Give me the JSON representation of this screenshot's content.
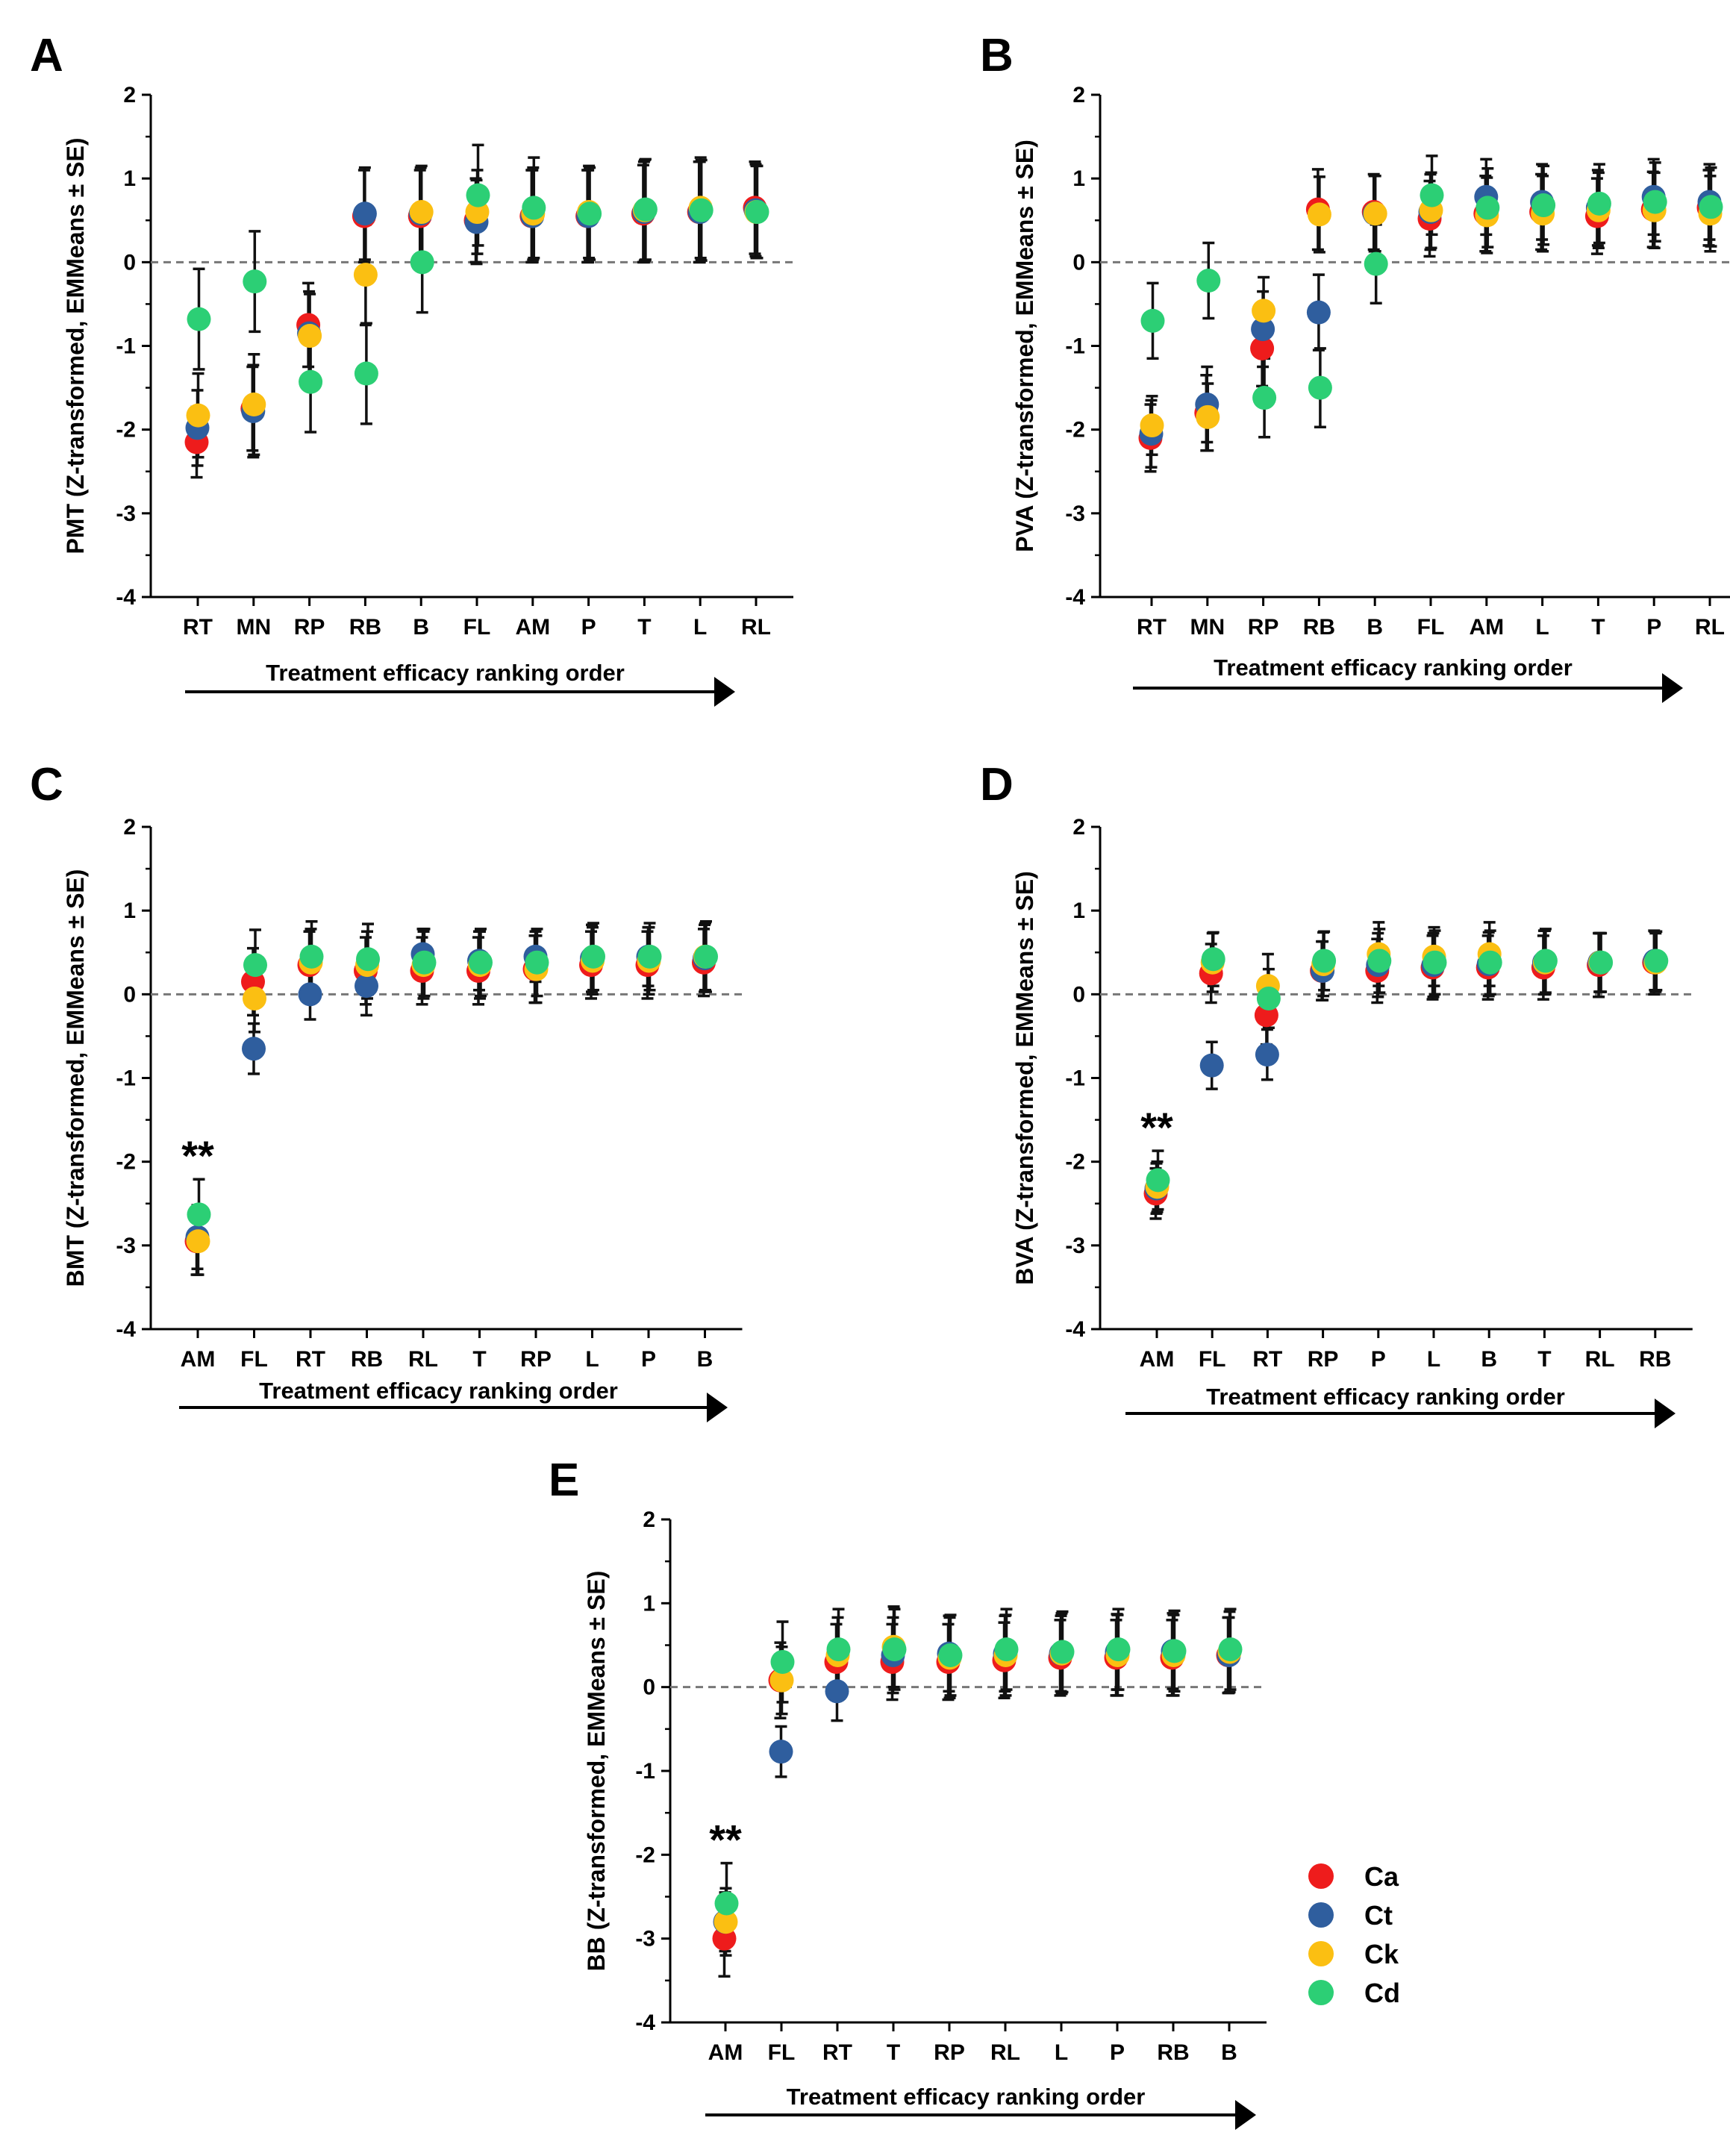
{
  "colors": {
    "Ca": "#ee1c1c",
    "Ct": "#2f5e9e",
    "Ck": "#fbbf12",
    "Cd": "#2ccf75"
  },
  "legend": [
    {
      "key": "Ca",
      "label": "Ca"
    },
    {
      "key": "Ct",
      "label": "Ct"
    },
    {
      "key": "Ck",
      "label": "Ck"
    },
    {
      "key": "Cd",
      "label": "Cd"
    }
  ],
  "chart_data": [
    {
      "type": "scatter",
      "panel": "A",
      "ylabel": "PMT (Z-transformed, EMMeans ± SE)",
      "xlabel": "Treatment efficacy ranking order",
      "ylim": [
        -4,
        2
      ],
      "yticks": [
        -4,
        -3,
        -2,
        -1,
        0,
        1,
        2
      ],
      "categories": [
        "RT",
        "MN",
        "RP",
        "RB",
        "B",
        "FL",
        "AM",
        "P",
        "T",
        "L",
        "RL"
      ],
      "reference_line": 0,
      "significance": [],
      "series": [
        {
          "name": "Ca",
          "values": [
            -2.15,
            -1.75,
            -0.75,
            0.55,
            0.55,
            0.5,
            0.55,
            0.55,
            0.58,
            0.6,
            0.65
          ],
          "se": [
            0.42,
            0.5,
            0.5,
            0.55,
            0.55,
            0.5,
            0.55,
            0.55,
            0.58,
            0.6,
            0.55
          ]
        },
        {
          "name": "Ct",
          "values": [
            -1.98,
            -1.78,
            -0.85,
            0.58,
            0.58,
            0.48,
            0.55,
            0.55,
            0.6,
            0.6,
            0.62
          ],
          "se": [
            0.45,
            0.55,
            0.5,
            0.55,
            0.55,
            0.5,
            0.55,
            0.55,
            0.6,
            0.6,
            0.55
          ]
        },
        {
          "name": "Ck",
          "values": [
            -1.83,
            -1.7,
            -0.88,
            -0.15,
            0.6,
            0.6,
            0.58,
            0.6,
            0.62,
            0.65,
            0.6
          ],
          "se": [
            0.5,
            0.6,
            0.5,
            0.6,
            0.55,
            0.5,
            0.55,
            0.55,
            0.6,
            0.6,
            0.55
          ]
        },
        {
          "name": "Cd",
          "values": [
            -0.68,
            -0.23,
            -1.43,
            -1.33,
            0.0,
            0.8,
            0.65,
            0.58,
            0.63,
            0.62,
            0.6
          ],
          "se": [
            0.6,
            0.6,
            0.6,
            0.6,
            0.6,
            0.6,
            0.6,
            0.55,
            0.6,
            0.6,
            0.55
          ]
        }
      ]
    },
    {
      "type": "scatter",
      "panel": "B",
      "ylabel": "PVA (Z-transformed, EMMeans ± SE)",
      "xlabel": "Treatment efficacy ranking order",
      "ylim": [
        -4,
        2
      ],
      "yticks": [
        -4,
        -3,
        -2,
        -1,
        0,
        1,
        2
      ],
      "categories": [
        "RT",
        "MN",
        "RP",
        "RB",
        "B",
        "FL",
        "AM",
        "L",
        "T",
        "P",
        "RL"
      ],
      "reference_line": 0,
      "significance": [],
      "series": [
        {
          "name": "Ca",
          "values": [
            -2.1,
            -1.8,
            -1.03,
            0.63,
            0.6,
            0.52,
            0.58,
            0.6,
            0.55,
            0.63,
            0.65
          ],
          "se": [
            0.4,
            0.45,
            0.45,
            0.48,
            0.45,
            0.45,
            0.45,
            0.45,
            0.45,
            0.45,
            0.45
          ]
        },
        {
          "name": "Ct",
          "values": [
            -2.05,
            -1.7,
            -0.8,
            -0.6,
            0.58,
            0.6,
            0.78,
            0.72,
            0.65,
            0.78,
            0.72
          ],
          "se": [
            0.4,
            0.45,
            0.45,
            0.45,
            0.45,
            0.45,
            0.45,
            0.45,
            0.45,
            0.45,
            0.45
          ]
        },
        {
          "name": "Ck",
          "values": [
            -1.95,
            -1.85,
            -0.58,
            0.57,
            0.58,
            0.62,
            0.56,
            0.58,
            0.62,
            0.62,
            0.58
          ],
          "se": [
            0.35,
            0.4,
            0.4,
            0.45,
            0.45,
            0.45,
            0.45,
            0.45,
            0.45,
            0.45,
            0.45
          ]
        },
        {
          "name": "Cd",
          "values": [
            -0.7,
            -0.22,
            -1.62,
            -1.5,
            -0.02,
            0.8,
            0.65,
            0.68,
            0.7,
            0.72,
            0.66
          ],
          "se": [
            0.45,
            0.45,
            0.47,
            0.47,
            0.47,
            0.47,
            0.47,
            0.47,
            0.47,
            0.47,
            0.47
          ]
        }
      ]
    },
    {
      "type": "scatter",
      "panel": "C",
      "ylabel": "BMT (Z-transformed, EMMeans ± SE)",
      "xlabel": "Treatment efficacy ranking order",
      "ylim": [
        -4,
        2
      ],
      "yticks": [
        -4,
        -3,
        -2,
        -1,
        0,
        1,
        2
      ],
      "categories": [
        "AM",
        "FL",
        "RT",
        "RB",
        "RL",
        "T",
        "RP",
        "L",
        "P",
        "B"
      ],
      "reference_line": 0,
      "significance": [
        {
          "category": "AM",
          "label": "**"
        }
      ],
      "series": [
        {
          "name": "Ca",
          "values": [
            -2.95,
            0.15,
            0.35,
            0.28,
            0.28,
            0.28,
            0.3,
            0.35,
            0.35,
            0.38
          ],
          "se": [
            0.4,
            0.4,
            0.4,
            0.4,
            0.4,
            0.4,
            0.4,
            0.4,
            0.4,
            0.4
          ]
        },
        {
          "name": "Ct",
          "values": [
            -2.9,
            -0.65,
            0.0,
            0.1,
            0.48,
            0.4,
            0.45,
            0.43,
            0.45,
            0.43
          ],
          "se": [
            0.38,
            0.3,
            0.3,
            0.35,
            0.3,
            0.35,
            0.3,
            0.4,
            0.35,
            0.4
          ]
        },
        {
          "name": "Ck",
          "values": [
            -2.95,
            -0.05,
            0.38,
            0.35,
            0.35,
            0.35,
            0.3,
            0.4,
            0.4,
            0.45
          ],
          "se": [
            0.4,
            0.4,
            0.4,
            0.4,
            0.4,
            0.4,
            0.4,
            0.4,
            0.4,
            0.4
          ]
        },
        {
          "name": "Cd",
          "values": [
            -2.63,
            0.35,
            0.45,
            0.42,
            0.38,
            0.38,
            0.38,
            0.45,
            0.45,
            0.45
          ],
          "se": [
            0.42,
            0.42,
            0.42,
            0.42,
            0.4,
            0.4,
            0.4,
            0.4,
            0.4,
            0.42
          ]
        }
      ]
    },
    {
      "type": "scatter",
      "panel": "D",
      "ylabel": "BVA (Z-transformed, EMMeans ± SE)",
      "xlabel": "Treatment efficacy ranking order",
      "ylim": [
        -4,
        2
      ],
      "yticks": [
        -4,
        -3,
        -2,
        -1,
        0,
        1,
        2
      ],
      "categories": [
        "AM",
        "FL",
        "RT",
        "RP",
        "P",
        "L",
        "B",
        "T",
        "RL",
        "RB"
      ],
      "reference_line": 0,
      "significance": [
        {
          "category": "AM",
          "label": "**"
        }
      ],
      "series": [
        {
          "name": "Ca",
          "values": [
            -2.38,
            0.25,
            -0.25,
            0.28,
            0.28,
            0.32,
            0.32,
            0.32,
            0.35,
            0.38
          ],
          "se": [
            0.3,
            0.35,
            0.35,
            0.35,
            0.38,
            0.38,
            0.38,
            0.38,
            0.38,
            0.38
          ]
        },
        {
          "name": "Ct",
          "values": [
            -2.32,
            -0.85,
            -0.72,
            0.28,
            0.35,
            0.35,
            0.36,
            0.38,
            0.38,
            0.4
          ],
          "se": [
            0.3,
            0.28,
            0.3,
            0.35,
            0.38,
            0.38,
            0.38,
            0.38,
            0.35,
            0.35
          ]
        },
        {
          "name": "Ck",
          "values": [
            -2.3,
            0.38,
            0.1,
            0.36,
            0.48,
            0.45,
            0.48,
            0.38,
            0.38,
            0.38
          ],
          "se": [
            0.3,
            0.35,
            0.38,
            0.38,
            0.38,
            0.35,
            0.38,
            0.38,
            0.35,
            0.35
          ]
        },
        {
          "name": "Cd",
          "values": [
            -2.22,
            0.42,
            -0.05,
            0.4,
            0.4,
            0.38,
            0.38,
            0.4,
            0.38,
            0.4
          ],
          "se": [
            0.35,
            0.32,
            0.35,
            0.35,
            0.38,
            0.38,
            0.38,
            0.38,
            0.35,
            0.35
          ]
        }
      ]
    },
    {
      "type": "scatter",
      "panel": "E",
      "ylabel": "BB (Z-transformed, EMMeans ± SE)",
      "xlabel": "Treatment efficacy ranking order",
      "ylim": [
        -4,
        2
      ],
      "yticks": [
        -4,
        -3,
        -2,
        -1,
        0,
        1,
        2
      ],
      "categories": [
        "AM",
        "FL",
        "RT",
        "T",
        "RP",
        "RL",
        "L",
        "P",
        "RB",
        "B"
      ],
      "reference_line": 0,
      "significance": [
        {
          "category": "AM",
          "label": "**"
        }
      ],
      "series": [
        {
          "name": "Ca",
          "values": [
            -3.0,
            0.08,
            0.3,
            0.3,
            0.3,
            0.32,
            0.35,
            0.35,
            0.35,
            0.38
          ],
          "se": [
            0.45,
            0.45,
            0.45,
            0.45,
            0.45,
            0.45,
            0.45,
            0.45,
            0.45,
            0.45
          ]
        },
        {
          "name": "Ct",
          "values": [
            -2.8,
            -0.77,
            -0.05,
            0.38,
            0.4,
            0.4,
            0.4,
            0.42,
            0.43,
            0.38
          ],
          "se": [
            0.35,
            0.3,
            0.35,
            0.45,
            0.45,
            0.45,
            0.45,
            0.45,
            0.45,
            0.45
          ]
        },
        {
          "name": "Ck",
          "values": [
            -2.8,
            0.08,
            0.38,
            0.48,
            0.35,
            0.38,
            0.4,
            0.38,
            0.38,
            0.42
          ],
          "se": [
            0.4,
            0.4,
            0.45,
            0.48,
            0.48,
            0.48,
            0.48,
            0.48,
            0.48,
            0.48
          ]
        },
        {
          "name": "Cd",
          "values": [
            -2.58,
            0.3,
            0.45,
            0.45,
            0.38,
            0.45,
            0.42,
            0.45,
            0.43,
            0.45
          ],
          "se": [
            0.48,
            0.48,
            0.48,
            0.48,
            0.48,
            0.48,
            0.48,
            0.48,
            0.48,
            0.48
          ]
        }
      ]
    }
  ]
}
